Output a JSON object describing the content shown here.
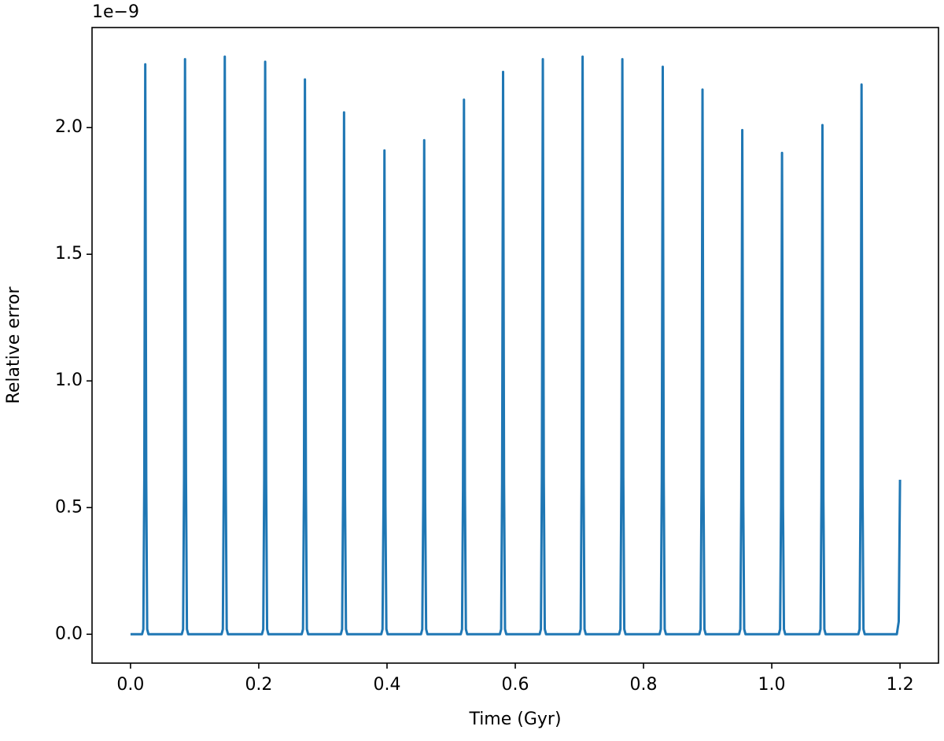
{
  "chart_data": {
    "type": "line",
    "x_label": "Time (Gyr)",
    "y_label": "Relative error",
    "y_offset_label": "1e−9",
    "color": "#1f77b4",
    "xlim": [
      -0.06,
      1.26
    ],
    "ylim": [
      -0.114,
      2.395
    ],
    "xticks": [
      {
        "value": 0,
        "label": "0.0"
      },
      0.2,
      0.4,
      0.6,
      0.8,
      {
        "value": 1,
        "label": "1.0"
      },
      1.2
    ],
    "yticks": [
      {
        "value": 0,
        "label": "0.0"
      },
      0.5,
      {
        "value": 1,
        "label": "1.0"
      },
      1.5,
      {
        "value": 2,
        "label": "2.0"
      }
    ],
    "x": [
      0,
      0.018,
      0.02,
      0.0215,
      0.023,
      0.0245,
      0.026,
      0.028,
      0.08,
      0.082,
      0.0835,
      0.085,
      0.0865,
      0.088,
      0.09,
      0.142,
      0.144,
      0.1455,
      0.147,
      0.1485,
      0.15,
      0.152,
      0.205,
      0.207,
      0.2085,
      0.21,
      0.2115,
      0.213,
      0.215,
      0.267,
      0.269,
      0.2705,
      0.272,
      0.2735,
      0.275,
      0.277,
      0.328,
      0.33,
      0.3315,
      0.333,
      0.3345,
      0.336,
      0.338,
      0.391,
      0.393,
      0.3945,
      0.396,
      0.3975,
      0.399,
      0.401,
      0.453,
      0.455,
      0.4565,
      0.458,
      0.4595,
      0.461,
      0.463,
      0.515,
      0.517,
      0.5185,
      0.52,
      0.5215,
      0.523,
      0.525,
      0.576,
      0.578,
      0.5795,
      0.581,
      0.5825,
      0.584,
      0.586,
      0.638,
      0.64,
      0.6415,
      0.643,
      0.6445,
      0.646,
      0.648,
      0.7,
      0.702,
      0.7035,
      0.705,
      0.7065,
      0.708,
      0.71,
      0.762,
      0.764,
      0.7655,
      0.767,
      0.7685,
      0.77,
      0.772,
      0.825,
      0.827,
      0.8285,
      0.83,
      0.8315,
      0.833,
      0.835,
      0.887,
      0.889,
      0.8905,
      0.892,
      0.8935,
      0.895,
      0.897,
      0.949,
      0.951,
      0.9525,
      0.954,
      0.9555,
      0.957,
      0.959,
      1.011,
      1.013,
      1.0145,
      1.016,
      1.0175,
      1.019,
      1.021,
      1.074,
      1.076,
      1.0775,
      1.079,
      1.0805,
      1.082,
      1.084,
      1.135,
      1.137,
      1.1385,
      1.14,
      1.1415,
      1.143,
      1.145,
      1.195,
      1.198,
      1.2
    ],
    "values": [
      0,
      0,
      0.02,
      0.61,
      2.25,
      0.61,
      0.02,
      0,
      0,
      0.02,
      0.62,
      2.27,
      0.62,
      0.02,
      0,
      0,
      0.02,
      0.62,
      2.28,
      0.62,
      0.02,
      0,
      0,
      0.02,
      0.61,
      2.26,
      0.61,
      0.02,
      0,
      0,
      0.02,
      0.59,
      2.19,
      0.59,
      0.02,
      0,
      0,
      0.02,
      0.55,
      2.06,
      0.55,
      0.02,
      0,
      0,
      0.02,
      0.51,
      1.91,
      0.51,
      0.02,
      0,
      0,
      0.02,
      0.52,
      1.95,
      0.52,
      0.02,
      0,
      0,
      0.02,
      0.57,
      2.11,
      0.57,
      0.02,
      0,
      0,
      0.02,
      0.6,
      2.22,
      0.6,
      0.02,
      0,
      0,
      0.02,
      0.62,
      2.27,
      0.62,
      0.02,
      0,
      0,
      0.02,
      0.62,
      2.28,
      0.62,
      0.02,
      0,
      0,
      0.02,
      0.62,
      2.27,
      0.62,
      0.02,
      0,
      0,
      0.02,
      0.61,
      2.24,
      0.61,
      0.02,
      0,
      0,
      0.02,
      0.58,
      2.15,
      0.58,
      0.02,
      0,
      0,
      0.02,
      0.54,
      1.99,
      0.54,
      0.02,
      0,
      0,
      0.02,
      0.51,
      1.9,
      0.51,
      0.02,
      0,
      0,
      0.02,
      0.54,
      2.01,
      0.54,
      0.02,
      0,
      0,
      0.02,
      0.59,
      2.17,
      0.59,
      0.02,
      0,
      0,
      0.05,
      0.61
    ]
  }
}
